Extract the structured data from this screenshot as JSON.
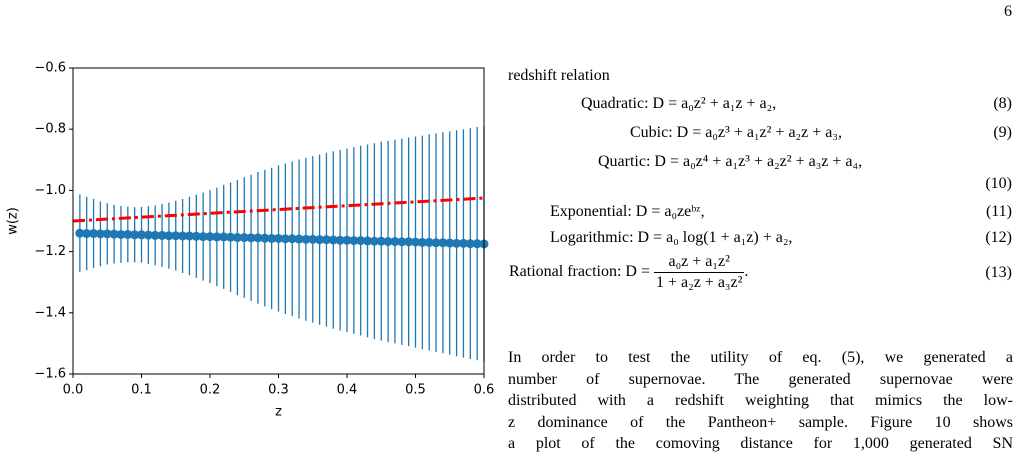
{
  "page_number": "6",
  "chart_data": {
    "type": "errorbar",
    "xlabel": "z",
    "ylabel": "w(z)",
    "xlim": [
      0,
      0.6
    ],
    "ylim": [
      -1.6,
      -0.6
    ],
    "xticks": [
      {
        "value": 0,
        "label": "0.0"
      },
      0.1,
      0.2,
      0.3,
      0.4,
      0.5,
      0.6
    ],
    "yticks": [
      {
        "value": -1.6,
        "label": "−1.6"
      },
      {
        "value": -1.4,
        "label": "−1.4"
      },
      {
        "value": -1.2,
        "label": "−1.2"
      },
      {
        "value": -1.0,
        "label": "−1.0"
      },
      {
        "value": -0.8,
        "label": "−0.8"
      },
      {
        "value": -0.6,
        "label": "−0.6"
      }
    ],
    "series": [
      {
        "type": "errorbar",
        "color": "#1f77b4",
        "x": [
          0.01,
          0.02,
          0.03,
          0.04,
          0.05,
          0.06,
          0.07,
          0.08,
          0.09,
          0.1,
          0.11,
          0.12,
          0.13,
          0.14,
          0.15,
          0.16,
          0.17,
          0.18,
          0.19,
          0.2,
          0.21,
          0.22,
          0.23,
          0.24,
          0.25,
          0.26,
          0.27,
          0.28,
          0.29,
          0.3,
          0.31,
          0.32,
          0.33,
          0.34,
          0.35,
          0.36,
          0.37,
          0.38,
          0.39,
          0.4,
          0.41,
          0.42,
          0.43,
          0.44,
          0.45,
          0.46,
          0.47,
          0.48,
          0.49,
          0.5,
          0.51,
          0.52,
          0.53,
          0.54,
          0.55,
          0.56,
          0.57,
          0.58,
          0.59,
          0.6
        ],
        "values": [
          -1.14,
          -1.141,
          -1.141,
          -1.142,
          -1.142,
          -1.143,
          -1.144,
          -1.144,
          -1.145,
          -1.145,
          -1.146,
          -1.147,
          -1.147,
          -1.148,
          -1.148,
          -1.149,
          -1.149,
          -1.15,
          -1.151,
          -1.151,
          -1.152,
          -1.152,
          -1.153,
          -1.154,
          -1.154,
          -1.155,
          -1.155,
          -1.156,
          -1.157,
          -1.157,
          -1.158,
          -1.158,
          -1.159,
          -1.16,
          -1.16,
          -1.161,
          -1.161,
          -1.162,
          -1.163,
          -1.163,
          -1.164,
          -1.164,
          -1.165,
          -1.166,
          -1.166,
          -1.167,
          -1.167,
          -1.168,
          -1.168,
          -1.169,
          -1.17,
          -1.17,
          -1.171,
          -1.171,
          -1.172,
          -1.173,
          -1.173,
          -1.174,
          -1.174,
          -1.175
        ],
        "errors": [
          0.127,
          0.12,
          0.113,
          0.106,
          0.1,
          0.096,
          0.093,
          0.091,
          0.09,
          0.091,
          0.094,
          0.098,
          0.103,
          0.108,
          0.114,
          0.121,
          0.128,
          0.136,
          0.144,
          0.152,
          0.161,
          0.17,
          0.179,
          0.188,
          0.197,
          0.206,
          0.215,
          0.223,
          0.231,
          0.239,
          0.246,
          0.253,
          0.26,
          0.266,
          0.272,
          0.278,
          0.284,
          0.29,
          0.295,
          0.3,
          0.305,
          0.31,
          0.315,
          0.32,
          0.325,
          0.329,
          0.333,
          0.337,
          0.341,
          0.345,
          0.349,
          0.353,
          0.357,
          0.361,
          0.365,
          0.369,
          0.373,
          0.377,
          0.381,
          0.385
        ]
      },
      {
        "type": "line",
        "color": "#ff0000",
        "style": "dash-dot",
        "x": [
          0,
          0.6
        ],
        "values": [
          -1.1,
          -1.025
        ]
      }
    ]
  },
  "text": {
    "intro": "redshift relation",
    "equations": [
      {
        "label": "Quadratic:",
        "formula": "D = a₀z² + a₁z + a₂,",
        "number": "(8)"
      },
      {
        "label": "Cubic:",
        "formula": "D = a₀z³ + a₁z² + a₂z + a₃,",
        "number": "(9)"
      },
      {
        "label": "Quartic:",
        "formula": "D = a₀z⁴ + a₁z³ + a₂z² + a₃z + a₄,",
        "number": "(10)"
      },
      {
        "label": "Exponential:",
        "formula": "D = a₀zeᵇᶻ,",
        "number": "(11)"
      },
      {
        "label": "Logarithmic:",
        "formula": "D = a₀ log(1 + a₁z) + a₂,",
        "number": "(12)"
      },
      {
        "label": "Rational fraction:",
        "formula": "D =",
        "numerator": "a₀z + a₁z²",
        "denominator": "1 + a₂z + a₃z²",
        "end": ".",
        "number": "(13)"
      }
    ],
    "paragraph": [
      "In order to test the utility of eq. (5), we generated a",
      "number of supernovae. The generated supernovae were",
      "distributed with a redshift weighting that mimics the low-",
      "z dominance of the Pantheon+ sample. Figure 10 shows",
      "a plot of the comoving distance for 1,000 generated SN"
    ]
  }
}
